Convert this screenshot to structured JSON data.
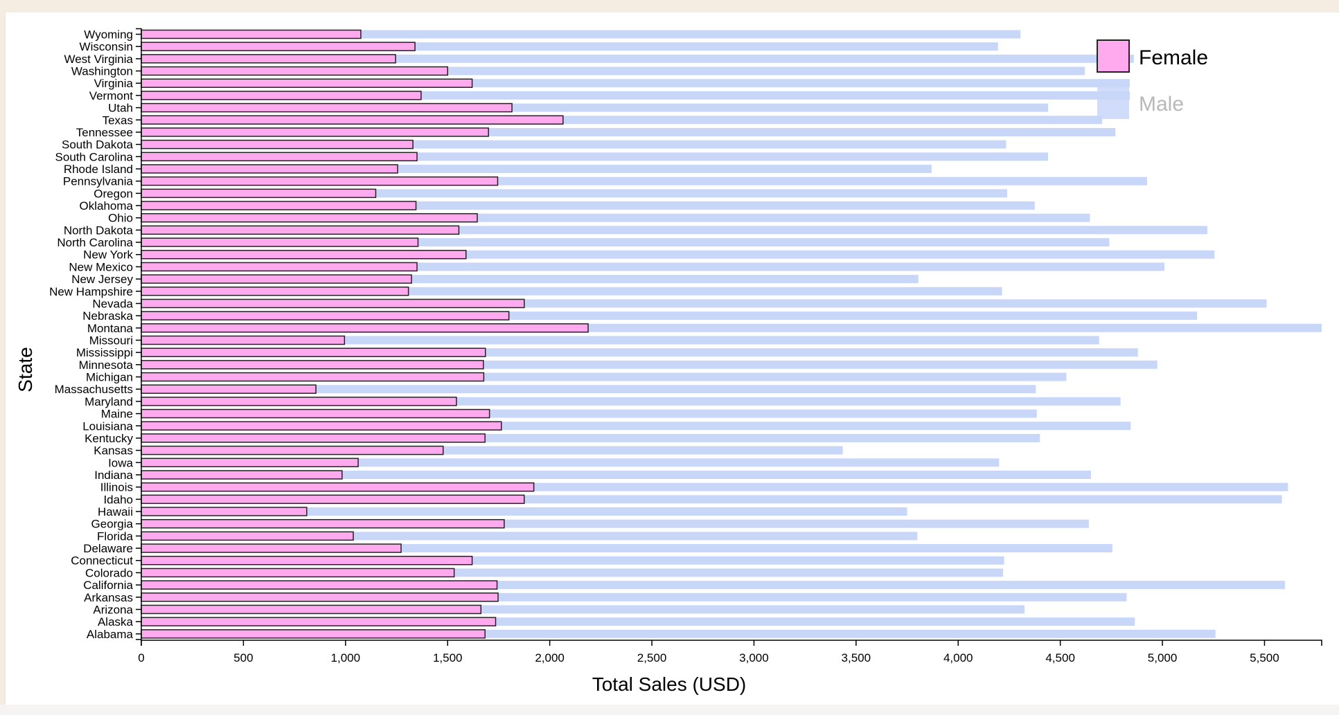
{
  "chart_data": {
    "type": "bar",
    "orientation": "horizontal",
    "title": "",
    "xlabel": "Total Sales (USD)",
    "ylabel": "State",
    "xlim": [
      0,
      5780
    ],
    "xticks": [
      0,
      500,
      1000,
      1500,
      2000,
      2500,
      3000,
      3500,
      4000,
      4500,
      5000,
      5500
    ],
    "grid": false,
    "legend_position": "top-right",
    "categories": [
      "Wyoming",
      "Wisconsin",
      "West Virginia",
      "Washington",
      "Virginia",
      "Vermont",
      "Utah",
      "Texas",
      "Tennessee",
      "South Dakota",
      "South Carolina",
      "Rhode Island",
      "Pennsylvania",
      "Oregon",
      "Oklahoma",
      "Ohio",
      "North Dakota",
      "North Carolina",
      "New York",
      "New Mexico",
      "New Jersey",
      "New Hampshire",
      "Nevada",
      "Nebraska",
      "Montana",
      "Missouri",
      "Mississippi",
      "Minnesota",
      "Michigan",
      "Massachusetts",
      "Maryland",
      "Maine",
      "Louisiana",
      "Kentucky",
      "Kansas",
      "Iowa",
      "Indiana",
      "Illinois",
      "Idaho",
      "Hawaii",
      "Georgia",
      "Florida",
      "Delaware",
      "Connecticut",
      "Colorado",
      "California",
      "Arkansas",
      "Arizona",
      "Alaska",
      "Alabama"
    ],
    "series": [
      {
        "name": "Female",
        "color": "#ffaaee",
        "values": [
          1075,
          1340,
          1245,
          1500,
          1620,
          1370,
          1815,
          2065,
          1700,
          1330,
          1350,
          1255,
          1745,
          1148,
          1345,
          1645,
          1555,
          1355,
          1590,
          1350,
          1323,
          1308,
          1875,
          1800,
          2188,
          995,
          1685,
          1675,
          1677,
          855,
          1543,
          1705,
          1763,
          1683,
          1478,
          1062,
          983,
          1922,
          1875,
          810,
          1777,
          1038,
          1272,
          1620,
          1532,
          1742,
          1747,
          1663,
          1735,
          1683
        ]
      },
      {
        "name": "Male",
        "color": "#c8d6f8",
        "values": [
          4305,
          4195,
          4860,
          4620,
          4840,
          4840,
          4440,
          4705,
          4770,
          4235,
          4440,
          3870,
          4925,
          4240,
          4375,
          4645,
          5220,
          4740,
          5255,
          5010,
          3805,
          4215,
          5510,
          5170,
          5780,
          4690,
          4880,
          4975,
          4530,
          4380,
          4795,
          4385,
          4845,
          4400,
          3435,
          4200,
          4650,
          5615,
          5585,
          3750,
          4640,
          3800,
          4755,
          4225,
          4220,
          5600,
          4825,
          4325,
          4865,
          5260
        ]
      }
    ]
  }
}
